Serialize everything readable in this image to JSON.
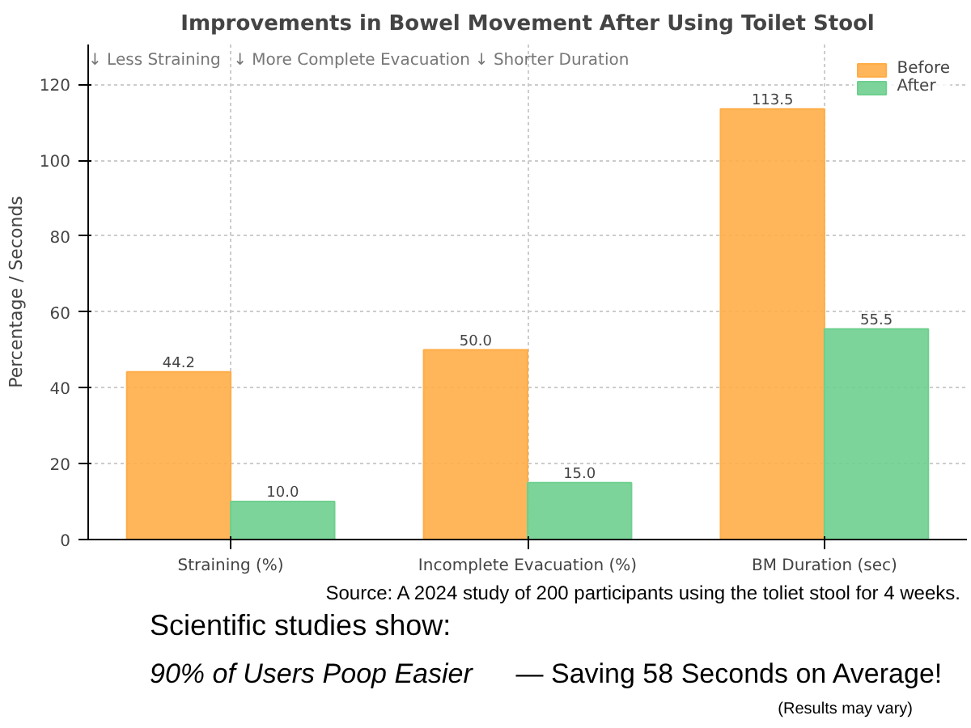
{
  "chart_data": {
    "type": "bar",
    "title": "Improvements in Bowel Movement After Using Toilet Stool",
    "ylabel": "Percentage / Seconds",
    "categories": [
      "Straining (%)",
      "Incomplete Evacuation (%)",
      "BM Duration (sec)"
    ],
    "series": [
      {
        "name": "Before",
        "color": "#ffad47",
        "values": [
          44.2,
          50.0,
          113.5
        ]
      },
      {
        "name": "After",
        "color": "#6fcf8f",
        "values": [
          10.0,
          15.0,
          55.5
        ]
      }
    ],
    "value_labels": [
      [
        "44.2",
        "50.0",
        "113.5"
      ],
      [
        "10.0",
        "15.0",
        "55.5"
      ]
    ],
    "ylim": [
      0,
      130.5
    ],
    "yticks": [
      0,
      20,
      40,
      60,
      80,
      100,
      120
    ],
    "grid": true,
    "legend": "top right",
    "annotations": [
      "↓ Less Straining",
      "↓ More Complete Evacuation",
      "↓ Shorter Duration",
      "Source: A 2024 study of 200 participants using the toliet stool for 4 weeks.",
      "Scientific studies show:",
      "90% of Users Poop Easier",
      "— Saving 58 Seconds on Average!",
      "(Results may vary)"
    ]
  }
}
